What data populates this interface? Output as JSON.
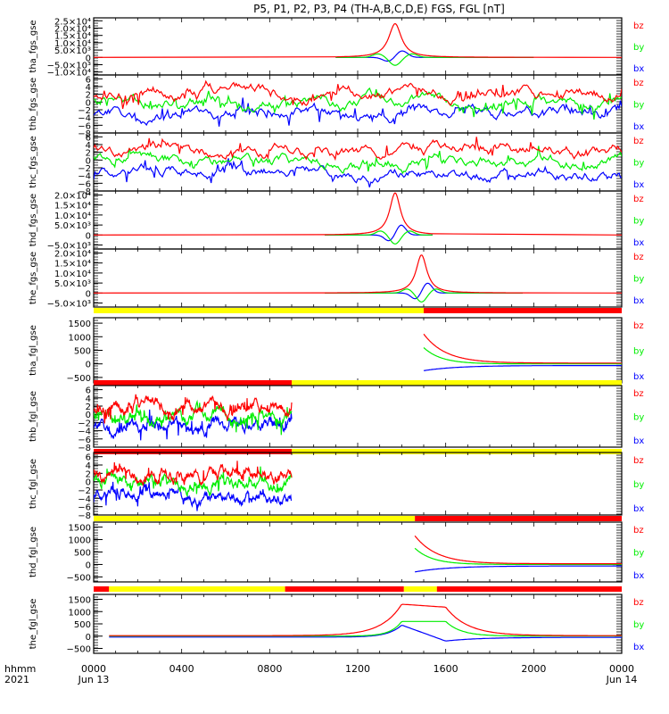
{
  "title": "P5, P1, P2, P3, P4 (TH-A,B,C,D,E) FGS, FGL [nT]",
  "x_axis": {
    "unit_label": "hhmm",
    "year_label": "2021",
    "ticks": [
      {
        "hour": 0,
        "label": "0000",
        "sublabel": "Jun 13"
      },
      {
        "hour": 4,
        "label": "0400",
        "sublabel": ""
      },
      {
        "hour": 8,
        "label": "0800",
        "sublabel": ""
      },
      {
        "hour": 12,
        "label": "1200",
        "sublabel": ""
      },
      {
        "hour": 16,
        "label": "1600",
        "sublabel": ""
      },
      {
        "hour": 20,
        "label": "2000",
        "sublabel": ""
      },
      {
        "hour": 24,
        "label": "0000",
        "sublabel": "Jun 14"
      }
    ]
  },
  "legend": {
    "bz": {
      "label": "bz",
      "color": "#ff0000"
    },
    "by": {
      "label": "by",
      "color": "#00ee00"
    },
    "bx": {
      "label": "bx",
      "color": "#0000ff"
    }
  },
  "bar_colors": {
    "yellow": "#ffff00",
    "red": "#ff0000"
  },
  "chart_data": [
    {
      "type": "line",
      "ylabel": "tha_fgs_gse",
      "ylim": [
        -12000,
        27000
      ],
      "ticks": [
        {
          "v": 25000,
          "label": "2.5×10⁴"
        },
        {
          "v": 20000,
          "label": "2.0×10⁴"
        },
        {
          "v": 15000,
          "label": "1.5×10⁴"
        },
        {
          "v": 10000,
          "label": "1.0×10⁴"
        },
        {
          "v": 5000,
          "label": "5.0×10³"
        },
        {
          "v": 0,
          "label": "0"
        },
        {
          "v": -5000,
          "label": "−5.0×10³"
        },
        {
          "v": -10000,
          "label": "−1.0×10⁴"
        }
      ],
      "kind": "spike",
      "x_range": [
        11.0,
        20.0
      ],
      "peak_hour": 13.7,
      "peak": {
        "bz": 23000,
        "by": -6000,
        "bx": 4500
      },
      "width": 0.35
    },
    {
      "type": "line",
      "ylabel": "thb_fgs_gse",
      "ylim": [
        -8,
        7
      ],
      "ticks": [
        {
          "v": 6,
          "label": "6"
        },
        {
          "v": 4,
          "label": "4"
        },
        {
          "v": 2,
          "label": "2"
        },
        {
          "v": 0,
          "label": "0"
        },
        {
          "v": -2,
          "label": "−2"
        },
        {
          "v": -4,
          "label": "−4"
        },
        {
          "v": -6,
          "label": "−6"
        },
        {
          "v": -8,
          "label": "−8"
        }
      ],
      "kind": "noisy",
      "x_range": [
        0,
        24
      ],
      "means": {
        "bz": 2,
        "by": 0,
        "bx": -3
      },
      "seed": 3
    },
    {
      "type": "line",
      "ylabel": "thc_fgs_gse",
      "ylim": [
        -8,
        7
      ],
      "ticks": [
        {
          "v": 6,
          "label": "6"
        },
        {
          "v": 4,
          "label": "4"
        },
        {
          "v": 2,
          "label": "2"
        },
        {
          "v": 0,
          "label": "0"
        },
        {
          "v": -2,
          "label": "−2"
        },
        {
          "v": -4,
          "label": "−4"
        },
        {
          "v": -6,
          "label": "−6"
        },
        {
          "v": -8,
          "label": "−8"
        }
      ],
      "kind": "noisy",
      "x_range": [
        0,
        24
      ],
      "means": {
        "bz": 2.5,
        "by": -0.5,
        "bx": -3
      },
      "seed": 5
    },
    {
      "type": "line",
      "ylabel": "thd_fgs_gse",
      "ylim": [
        -7000,
        22000
      ],
      "ticks": [
        {
          "v": 20000,
          "label": "2.0×10⁴"
        },
        {
          "v": 15000,
          "label": "1.5×10⁴"
        },
        {
          "v": 10000,
          "label": "1.0×10⁴"
        },
        {
          "v": 5000,
          "label": "5.0×10³"
        },
        {
          "v": 0,
          "label": "0"
        },
        {
          "v": -5000,
          "label": "−5.0×10³"
        }
      ],
      "kind": "spike",
      "x_range": [
        10.5,
        15.4
      ],
      "peak_hour": 13.7,
      "peak": {
        "bz": 21000,
        "by": -5000,
        "bx": 5000
      },
      "width": 0.3
    },
    {
      "type": "line",
      "ylabel": "the_fgs_gse",
      "ylim": [
        -7000,
        22000
      ],
      "ticks": [
        {
          "v": 20000,
          "label": "2.0×10⁴"
        },
        {
          "v": 15000,
          "label": "1.5×10⁴"
        },
        {
          "v": 10000,
          "label": "1.0×10⁴"
        },
        {
          "v": 5000,
          "label": "5.0×10³"
        },
        {
          "v": 0,
          "label": "0"
        },
        {
          "v": -5000,
          "label": "−5.0×10³"
        }
      ],
      "kind": "spike",
      "x_range": [
        10.5,
        19.5
      ],
      "peak_hour": 14.9,
      "peak": {
        "bz": 19000,
        "by": -5000,
        "bx": 5000
      },
      "width": 0.3
    },
    {
      "type": "line",
      "ylabel": "tha_fgl_gse",
      "ylim": [
        -700,
        1700
      ],
      "ticks": [
        {
          "v": 1500,
          "label": "1500"
        },
        {
          "v": 1000,
          "label": "1000"
        },
        {
          "v": 500,
          "label": "500"
        },
        {
          "v": 0,
          "label": "0"
        },
        {
          "v": -500,
          "label": "−500"
        }
      ],
      "kind": "decay",
      "x_range": [
        15.0,
        24
      ],
      "start": {
        "bz": 1100,
        "by": 600,
        "bx": -250
      },
      "bar": [
        {
          "from": 0,
          "to": 15.0,
          "color": "yellow"
        },
        {
          "from": 15.0,
          "to": 24,
          "color": "red"
        }
      ]
    },
    {
      "type": "line",
      "ylabel": "thb_fgl_gse",
      "ylim": [
        -8,
        7
      ],
      "ticks": [
        {
          "v": 6,
          "label": "6"
        },
        {
          "v": 4,
          "label": "4"
        },
        {
          "v": 2,
          "label": "2"
        },
        {
          "v": 0,
          "label": "0"
        },
        {
          "v": -2,
          "label": "−2"
        },
        {
          "v": -4,
          "label": "−4"
        },
        {
          "v": -6,
          "label": "−6"
        },
        {
          "v": -8,
          "label": "−8"
        }
      ],
      "kind": "noisy",
      "x_range": [
        0,
        9.0
      ],
      "means": {
        "bz": 1.5,
        "by": -0.5,
        "bx": -3
      },
      "seed": 3,
      "bar": [
        {
          "from": 0,
          "to": 9.0,
          "color": "red"
        },
        {
          "from": 9.0,
          "to": 24,
          "color": "yellow"
        }
      ]
    },
    {
      "type": "line",
      "ylabel": "thc_fgl_gse",
      "ylim": [
        -8,
        7
      ],
      "ticks": [
        {
          "v": 6,
          "label": "6"
        },
        {
          "v": 4,
          "label": "4"
        },
        {
          "v": 2,
          "label": "2"
        },
        {
          "v": 0,
          "label": "0"
        },
        {
          "v": -2,
          "label": "−2"
        },
        {
          "v": -4,
          "label": "−4"
        },
        {
          "v": -6,
          "label": "−6"
        },
        {
          "v": -8,
          "label": "−8"
        }
      ],
      "kind": "noisy",
      "x_range": [
        0,
        9.0
      ],
      "means": {
        "bz": 1.5,
        "by": -0.5,
        "bx": -3
      },
      "seed": 5,
      "bar": [
        {
          "from": 0,
          "to": 9.0,
          "color": "red"
        },
        {
          "from": 9.0,
          "to": 24,
          "color": "yellow"
        }
      ]
    },
    {
      "type": "line",
      "ylabel": "thd_fgl_gse",
      "ylim": [
        -700,
        1700
      ],
      "ticks": [
        {
          "v": 1500,
          "label": "1500"
        },
        {
          "v": 1000,
          "label": "1000"
        },
        {
          "v": 500,
          "label": "500"
        },
        {
          "v": 0,
          "label": "0"
        },
        {
          "v": -500,
          "label": "−500"
        }
      ],
      "kind": "decay",
      "x_range": [
        14.6,
        24
      ],
      "start": {
        "bz": 1150,
        "by": 650,
        "bx": -300
      },
      "bar": [
        {
          "from": 0,
          "to": 14.6,
          "color": "yellow"
        },
        {
          "from": 14.6,
          "to": 24,
          "color": "red"
        }
      ]
    },
    {
      "type": "line",
      "ylabel": "the_fgl_gse",
      "ylim": [
        -700,
        1700
      ],
      "ticks": [
        {
          "v": 1500,
          "label": "1500"
        },
        {
          "v": 1000,
          "label": "1000"
        },
        {
          "v": 500,
          "label": "500"
        },
        {
          "v": 0,
          "label": "0"
        },
        {
          "v": -500,
          "label": "−500"
        }
      ],
      "kind": "plateau",
      "x_range": [
        0.7,
        24
      ],
      "plateau": [
        14.0,
        16.0
      ],
      "peak": {
        "bz": 1300,
        "by": 600,
        "bx": 450
      },
      "bar": [
        {
          "from": 0,
          "to": 0.7,
          "color": "red"
        },
        {
          "from": 0.7,
          "to": 8.7,
          "color": "yellow"
        },
        {
          "from": 8.7,
          "to": 14.1,
          "color": "red"
        },
        {
          "from": 14.1,
          "to": 15.6,
          "color": "yellow"
        },
        {
          "from": 15.6,
          "to": 24,
          "color": "red"
        }
      ]
    }
  ]
}
